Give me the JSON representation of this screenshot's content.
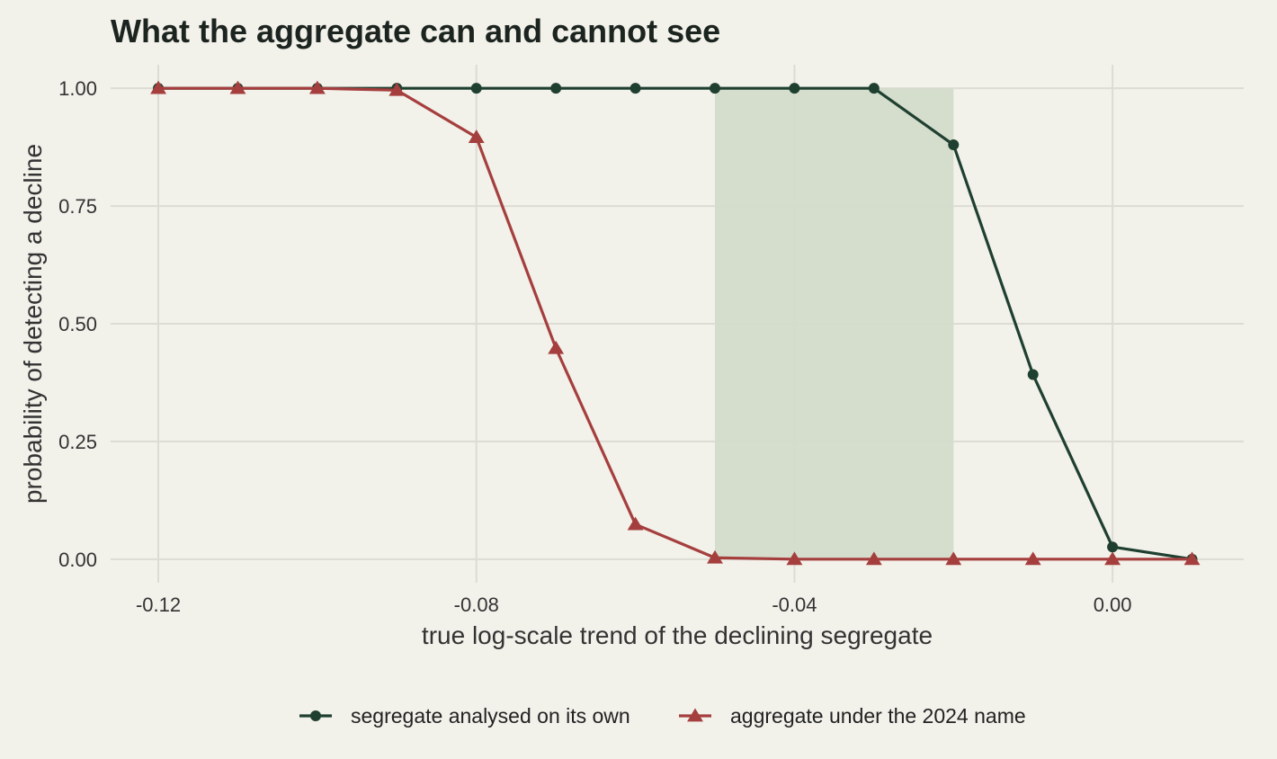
{
  "chart_data": {
    "type": "line",
    "title": "What the aggregate can and cannot see",
    "xlabel": "true log-scale trend of the declining segregate",
    "ylabel": "probability of detecting a decline",
    "xlim": [
      -0.126,
      0.0165
    ],
    "ylim": [
      -0.05,
      1.05
    ],
    "x_ticks": [
      -0.12,
      -0.08,
      -0.04,
      0.0
    ],
    "x_tick_labels": [
      "-0.12",
      "-0.08",
      "-0.04",
      "0.00"
    ],
    "y_ticks": [
      0,
      0.25,
      0.5,
      0.75,
      1.0
    ],
    "y_tick_labels": [
      "0.00",
      "0.25",
      "0.50",
      "0.75",
      "1.00"
    ],
    "grid": true,
    "shaded_region": {
      "x": [
        -0.05,
        -0.02
      ],
      "y": [
        0,
        1
      ],
      "color": "#d3dbcb"
    },
    "x": [
      -0.12,
      -0.11,
      -0.1,
      -0.09,
      -0.08,
      -0.07,
      -0.06,
      -0.05,
      -0.04,
      -0.03,
      -0.02,
      -0.01,
      0.0,
      0.01
    ],
    "series": [
      {
        "name": "segregate analysed on its own",
        "marker": "circle",
        "color": "#1f4030",
        "values": [
          1.0,
          1.0,
          1.0,
          1.0,
          1.0,
          1.0,
          1.0,
          1.0,
          1.0,
          1.0,
          0.88,
          0.392,
          0.026,
          0.0
        ]
      },
      {
        "name": "aggregate under the 2024 name",
        "marker": "triangle",
        "color": "#a53f3e",
        "values": [
          1.0,
          1.0,
          1.0,
          0.996,
          0.896,
          0.448,
          0.074,
          0.003,
          0.0,
          0.0,
          0.0,
          0.0,
          0.0,
          0.0
        ]
      }
    ],
    "legend_position": "bottom"
  }
}
